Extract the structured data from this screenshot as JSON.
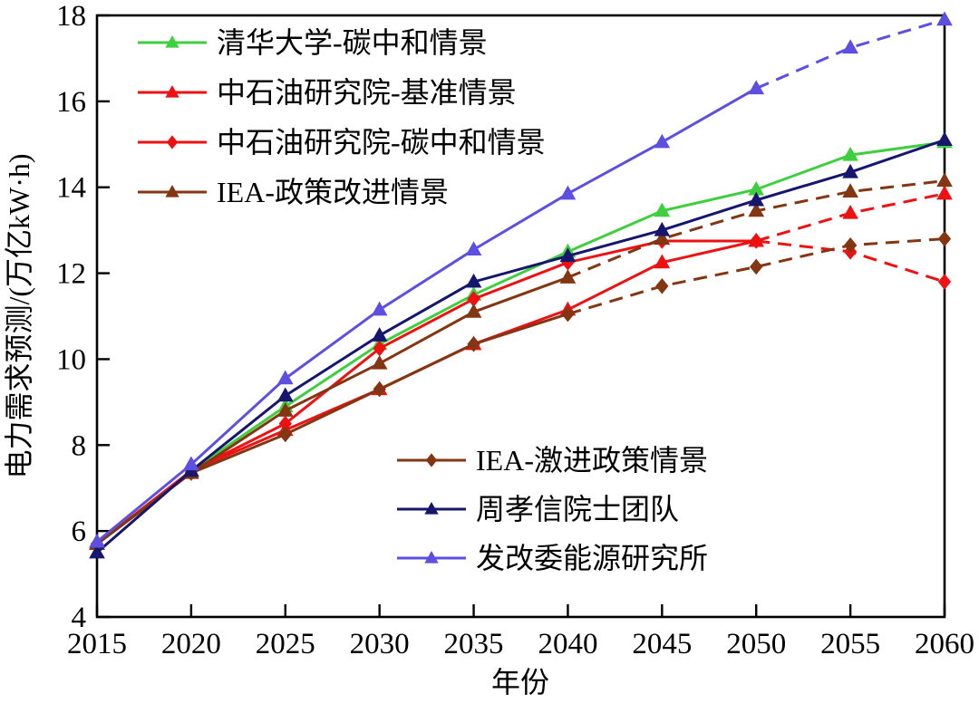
{
  "chart_data": {
    "type": "line",
    "x": [
      2015,
      2020,
      2025,
      2030,
      2035,
      2040,
      2045,
      2050,
      2055,
      2060
    ],
    "xlabel": "年份",
    "ylabel": "电力需求预测/(万亿kW·h)",
    "xlim": [
      2015,
      2060
    ],
    "ylim": [
      4,
      18
    ],
    "yticks": [
      4,
      6,
      8,
      10,
      12,
      14,
      16,
      18
    ],
    "grid": false,
    "frame": true,
    "axis_color": "#000000",
    "series": [
      {
        "name": "清华大学-碳中和情景",
        "color": "#3ecf3e",
        "marker": "triangle",
        "dash_from_x": null,
        "values": [
          5.7,
          7.4,
          8.9,
          10.35,
          11.5,
          12.5,
          13.45,
          13.95,
          14.75,
          15.05
        ]
      },
      {
        "name": "中石油研究院-基准情景",
        "color": "#ee1111",
        "marker": "triangle",
        "dash_from_x": 2050,
        "values": [
          5.7,
          7.4,
          8.35,
          9.3,
          10.35,
          11.15,
          12.25,
          12.75,
          13.4,
          13.85
        ]
      },
      {
        "name": "中石油研究院-碳中和情景",
        "color": "#ee1111",
        "marker": "diamond",
        "dash_from_x": 2050,
        "values": [
          5.7,
          7.4,
          8.5,
          10.25,
          11.4,
          12.25,
          12.75,
          12.75,
          12.5,
          11.8
        ]
      },
      {
        "name": "IEA-政策改进情景",
        "color": "#843512",
        "marker": "triangle",
        "dash_from_x": 2040,
        "values": [
          5.7,
          7.35,
          8.8,
          9.9,
          11.1,
          11.9,
          12.8,
          13.45,
          13.9,
          14.15
        ]
      },
      {
        "name": "IEA-激进政策情景",
        "color": "#843512",
        "marker": "diamond",
        "dash_from_x": 2040,
        "values": [
          5.7,
          7.35,
          8.25,
          9.3,
          10.35,
          11.05,
          11.7,
          12.15,
          12.65,
          12.8
        ]
      },
      {
        "name": "周孝信院士团队",
        "color": "#16166f",
        "marker": "triangle",
        "dash_from_x": null,
        "values": [
          5.5,
          7.4,
          9.15,
          10.55,
          11.8,
          12.4,
          13.0,
          13.7,
          14.35,
          15.1
        ]
      },
      {
        "name": "发改委能源研究所",
        "color": "#5c4fe2",
        "marker": "triangle",
        "dash_from_x": 2050,
        "values": [
          5.75,
          7.55,
          9.55,
          11.15,
          12.55,
          13.85,
          15.05,
          16.3,
          17.25,
          17.9
        ]
      }
    ],
    "legend_top_indices": [
      0,
      1,
      2,
      3
    ],
    "legend_bottom_indices": [
      4,
      5,
      6
    ],
    "legend_position": [
      "upper-left-inside",
      "lower-middle-inside"
    ]
  }
}
